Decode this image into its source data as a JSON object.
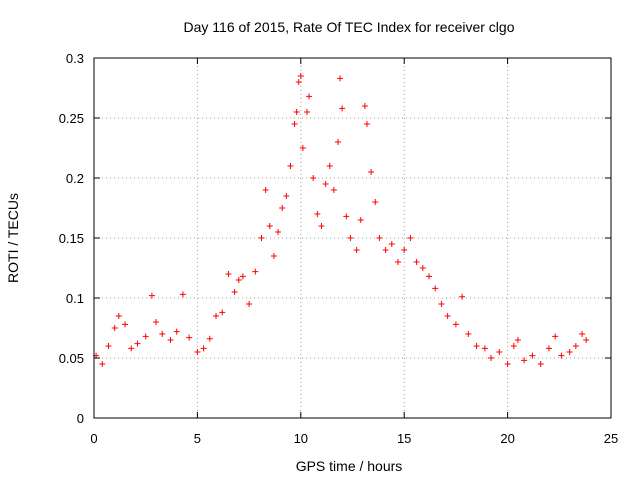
{
  "chart_data": {
    "type": "scatter",
    "title": "Day 116 of 2015, Rate Of TEC Index for receiver clgo",
    "xlabel": "GPS time / hours",
    "ylabel": "ROTI / TECUs",
    "xlim": [
      0,
      25
    ],
    "ylim": [
      0,
      0.3
    ],
    "x_ticks": [
      "0",
      "5",
      "10",
      "15",
      "20",
      "25"
    ],
    "y_ticks": [
      "0",
      "0.05",
      "0.1",
      "0.15",
      "0.2",
      "0.25",
      "0.3"
    ],
    "grid": true,
    "marker": "+",
    "series_color": "#ff0000",
    "series": [
      {
        "points": [
          [
            0.1,
            0.052
          ],
          [
            0.4,
            0.045
          ],
          [
            0.7,
            0.06
          ],
          [
            1.0,
            0.075
          ],
          [
            1.2,
            0.085
          ],
          [
            1.5,
            0.078
          ],
          [
            1.8,
            0.058
          ],
          [
            2.1,
            0.062
          ],
          [
            2.5,
            0.068
          ],
          [
            2.8,
            0.102
          ],
          [
            3.0,
            0.08
          ],
          [
            3.3,
            0.07
          ],
          [
            3.7,
            0.065
          ],
          [
            4.0,
            0.072
          ],
          [
            4.3,
            0.103
          ],
          [
            4.6,
            0.067
          ],
          [
            5.0,
            0.055
          ],
          [
            5.3,
            0.058
          ],
          [
            5.6,
            0.066
          ],
          [
            5.9,
            0.085
          ],
          [
            6.2,
            0.088
          ],
          [
            6.5,
            0.12
          ],
          [
            6.8,
            0.105
          ],
          [
            7.0,
            0.115
          ],
          [
            7.2,
            0.118
          ],
          [
            7.5,
            0.095
          ],
          [
            7.8,
            0.122
          ],
          [
            8.1,
            0.15
          ],
          [
            8.3,
            0.19
          ],
          [
            8.5,
            0.16
          ],
          [
            8.7,
            0.135
          ],
          [
            8.9,
            0.155
          ],
          [
            9.1,
            0.175
          ],
          [
            9.3,
            0.185
          ],
          [
            9.5,
            0.21
          ],
          [
            9.7,
            0.245
          ],
          [
            9.8,
            0.255
          ],
          [
            9.9,
            0.28
          ],
          [
            10.0,
            0.285
          ],
          [
            10.1,
            0.225
          ],
          [
            10.3,
            0.255
          ],
          [
            10.4,
            0.268
          ],
          [
            10.6,
            0.2
          ],
          [
            10.8,
            0.17
          ],
          [
            11.0,
            0.16
          ],
          [
            11.2,
            0.195
          ],
          [
            11.4,
            0.21
          ],
          [
            11.6,
            0.19
          ],
          [
            11.8,
            0.23
          ],
          [
            11.9,
            0.283
          ],
          [
            12.0,
            0.258
          ],
          [
            12.2,
            0.168
          ],
          [
            12.4,
            0.15
          ],
          [
            12.7,
            0.14
          ],
          [
            12.9,
            0.165
          ],
          [
            13.1,
            0.26
          ],
          [
            13.2,
            0.245
          ],
          [
            13.4,
            0.205
          ],
          [
            13.6,
            0.18
          ],
          [
            13.8,
            0.15
          ],
          [
            14.1,
            0.14
          ],
          [
            14.4,
            0.145
          ],
          [
            14.7,
            0.13
          ],
          [
            15.0,
            0.14
          ],
          [
            15.3,
            0.15
          ],
          [
            15.6,
            0.13
          ],
          [
            15.9,
            0.125
          ],
          [
            16.2,
            0.118
          ],
          [
            16.5,
            0.108
          ],
          [
            16.8,
            0.095
          ],
          [
            17.1,
            0.085
          ],
          [
            17.5,
            0.078
          ],
          [
            17.8,
            0.101
          ],
          [
            18.1,
            0.07
          ],
          [
            18.5,
            0.06
          ],
          [
            18.9,
            0.058
          ],
          [
            19.2,
            0.05
          ],
          [
            19.6,
            0.055
          ],
          [
            20.0,
            0.045
          ],
          [
            20.3,
            0.06
          ],
          [
            20.5,
            0.065
          ],
          [
            20.8,
            0.048
          ],
          [
            21.2,
            0.052
          ],
          [
            21.6,
            0.045
          ],
          [
            22.0,
            0.058
          ],
          [
            22.3,
            0.068
          ],
          [
            22.6,
            0.052
          ],
          [
            23.0,
            0.055
          ],
          [
            23.3,
            0.06
          ],
          [
            23.6,
            0.07
          ],
          [
            23.8,
            0.065
          ]
        ]
      }
    ]
  }
}
